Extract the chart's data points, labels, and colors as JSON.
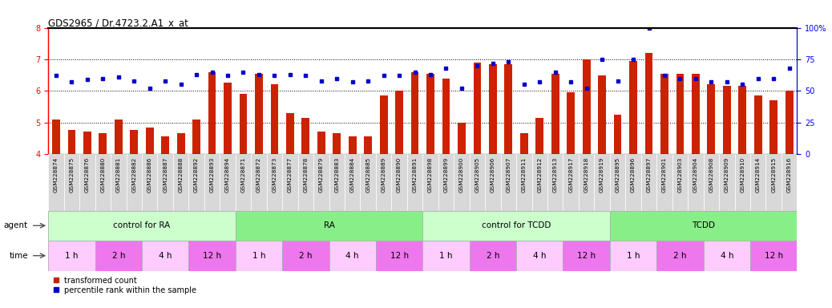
{
  "title": "GDS2965 / Dr.4723.2.A1_x_at",
  "bar_color": "#cc2200",
  "dot_color": "#0000cc",
  "ylim_left": [
    4,
    8
  ],
  "ylim_right": [
    0,
    100
  ],
  "yticks_left": [
    4,
    5,
    6,
    7,
    8
  ],
  "yticks_right": [
    0,
    25,
    50,
    75,
    100
  ],
  "ytick_labels_right": [
    "0",
    "25",
    "50",
    "75",
    "100%"
  ],
  "hlines": [
    5,
    6,
    7
  ],
  "samples": [
    "GSM228874",
    "GSM228875",
    "GSM228876",
    "GSM228880",
    "GSM228881",
    "GSM228882",
    "GSM228886",
    "GSM228887",
    "GSM228888",
    "GSM228892",
    "GSM228893",
    "GSM228894",
    "GSM228871",
    "GSM228872",
    "GSM228873",
    "GSM228877",
    "GSM228878",
    "GSM228879",
    "GSM228883",
    "GSM228884",
    "GSM228885",
    "GSM228889",
    "GSM228890",
    "GSM228891",
    "GSM228898",
    "GSM228899",
    "GSM228900",
    "GSM228905",
    "GSM228906",
    "GSM228907",
    "GSM228911",
    "GSM228912",
    "GSM228913",
    "GSM228917",
    "GSM228918",
    "GSM228919",
    "GSM228895",
    "GSM228896",
    "GSM228897",
    "GSM228901",
    "GSM228903",
    "GSM228904",
    "GSM228908",
    "GSM228909",
    "GSM228910",
    "GSM228914",
    "GSM228915",
    "GSM228916"
  ],
  "bar_values": [
    5.1,
    4.75,
    4.7,
    4.65,
    5.1,
    4.75,
    4.85,
    4.55,
    4.65,
    5.1,
    6.6,
    6.25,
    5.9,
    6.55,
    6.2,
    5.3,
    5.15,
    4.7,
    4.65,
    4.55,
    4.55,
    5.85,
    6.0,
    6.6,
    6.55,
    6.4,
    5.0,
    6.9,
    6.85,
    6.85,
    4.65,
    5.15,
    6.55,
    5.95,
    7.0,
    6.5,
    5.25,
    6.95,
    7.2,
    6.55,
    6.55,
    6.55,
    6.2,
    6.15,
    6.15,
    5.85,
    5.7,
    6.0
  ],
  "dot_values": [
    62,
    57,
    59,
    60,
    61,
    58,
    52,
    58,
    55,
    63,
    65,
    62,
    65,
    63,
    62,
    63,
    62,
    58,
    60,
    57,
    58,
    62,
    62,
    65,
    63,
    68,
    52,
    70,
    72,
    73,
    55,
    57,
    65,
    57,
    52,
    75,
    58,
    75,
    100,
    62,
    60,
    60,
    57,
    57,
    55,
    60,
    60,
    68
  ],
  "groups": [
    {
      "label": "control for RA",
      "start": 0,
      "end": 11,
      "color": "#ccffcc"
    },
    {
      "label": "RA",
      "start": 12,
      "end": 23,
      "color": "#88ee88"
    },
    {
      "label": "control for TCDD",
      "start": 24,
      "end": 35,
      "color": "#ccffcc"
    },
    {
      "label": "TCDD",
      "start": 36,
      "end": 47,
      "color": "#88ee88"
    }
  ],
  "time_groups": [
    {
      "label": "1 h",
      "start": 0,
      "end": 2,
      "color": "#ffccff"
    },
    {
      "label": "2 h",
      "start": 3,
      "end": 5,
      "color": "#ee77ee"
    },
    {
      "label": "4 h",
      "start": 6,
      "end": 8,
      "color": "#ffccff"
    },
    {
      "label": "12 h",
      "start": 9,
      "end": 11,
      "color": "#ee77ee"
    },
    {
      "label": "1 h",
      "start": 12,
      "end": 14,
      "color": "#ffccff"
    },
    {
      "label": "2 h",
      "start": 15,
      "end": 17,
      "color": "#ee77ee"
    },
    {
      "label": "4 h",
      "start": 18,
      "end": 20,
      "color": "#ffccff"
    },
    {
      "label": "12 h",
      "start": 21,
      "end": 23,
      "color": "#ee77ee"
    },
    {
      "label": "1 h",
      "start": 24,
      "end": 26,
      "color": "#ffccff"
    },
    {
      "label": "2 h",
      "start": 27,
      "end": 29,
      "color": "#ee77ee"
    },
    {
      "label": "4 h",
      "start": 30,
      "end": 32,
      "color": "#ffccff"
    },
    {
      "label": "12 h",
      "start": 33,
      "end": 35,
      "color": "#ee77ee"
    },
    {
      "label": "1 h",
      "start": 36,
      "end": 38,
      "color": "#ffccff"
    },
    {
      "label": "2 h",
      "start": 39,
      "end": 41,
      "color": "#ee77ee"
    },
    {
      "label": "4 h",
      "start": 42,
      "end": 44,
      "color": "#ffccff"
    },
    {
      "label": "12 h",
      "start": 45,
      "end": 47,
      "color": "#ee77ee"
    }
  ],
  "agent_label": "agent",
  "time_label": "time",
  "legend_bar": "transformed count",
  "legend_dot": "percentile rank within the sample",
  "bar_bottom": 4,
  "bg_color": "#ffffff",
  "tick_label_bg": "#dddddd"
}
